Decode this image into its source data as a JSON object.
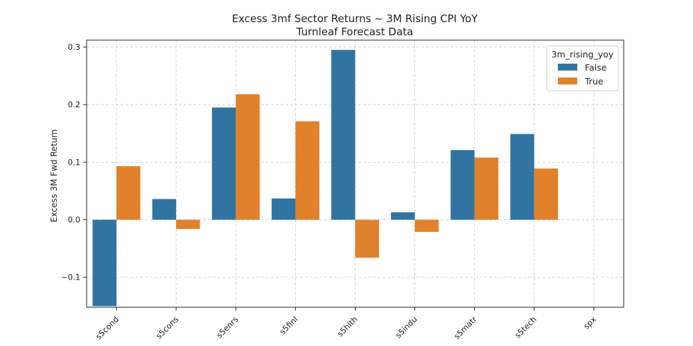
{
  "chart_data": {
    "type": "bar",
    "title_lines": [
      "Excess 3mf Sector Returns ~ 3M Rising CPI YoY",
      "Turnleaf Forecast Data"
    ],
    "xlabel": "",
    "ylabel": "Excess 3M Fwd Return",
    "categories": [
      "s5cond",
      "s5cons",
      "s5enrs",
      "s5finl",
      "s5hlth",
      "s5indu",
      "s5matr",
      "s5tech",
      "spx"
    ],
    "ylim": [
      -0.152,
      0.312
    ],
    "yticks": [
      -0.1,
      0.0,
      0.1,
      0.2,
      0.3
    ],
    "ytick_labels": [
      "−0.1",
      "0.0",
      "0.1",
      "0.2",
      "0.3"
    ],
    "grid": true,
    "legend": {
      "title": "3m_rising_yoy",
      "position": "top-right"
    },
    "series": [
      {
        "name": "False",
        "color": "#3274a1",
        "values": [
          -0.15,
          0.036,
          0.195,
          0.037,
          0.295,
          0.013,
          0.121,
          0.149,
          null
        ]
      },
      {
        "name": "True",
        "color": "#e1812c",
        "values": [
          0.093,
          -0.016,
          0.218,
          0.171,
          -0.066,
          -0.021,
          0.108,
          0.089,
          null
        ]
      }
    ]
  }
}
